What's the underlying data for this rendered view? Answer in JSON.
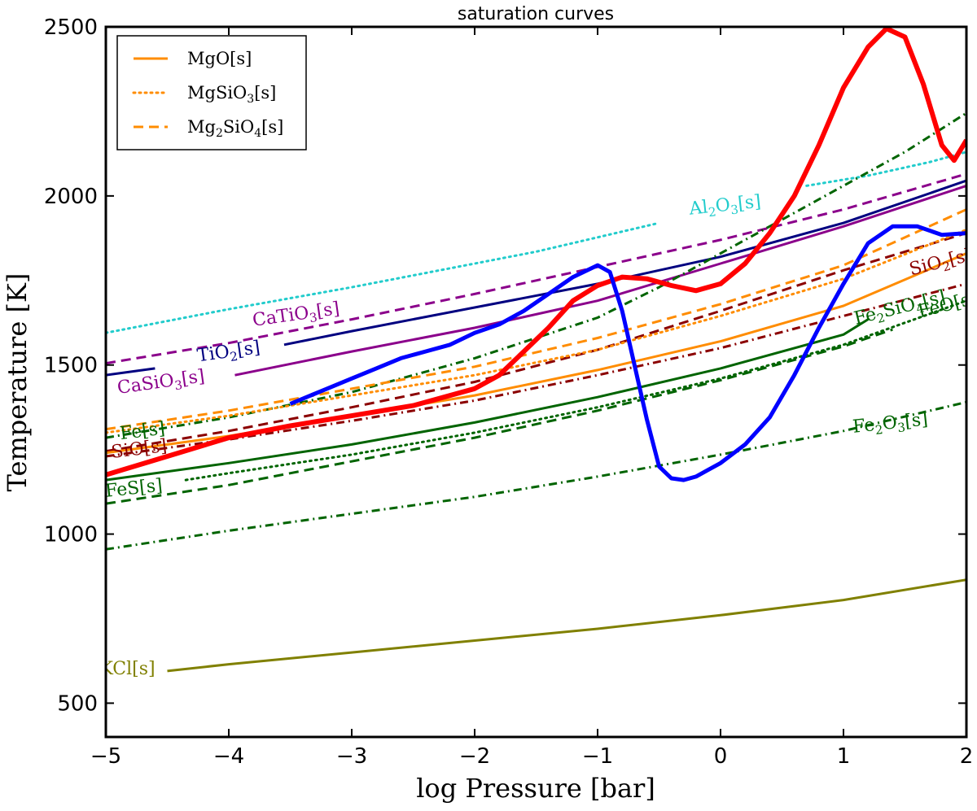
{
  "chart_data": {
    "type": "line",
    "title": "saturation curves",
    "xlabel": "log Pressure [bar]",
    "ylabel": "Temperature [K]",
    "xlim": [
      -5,
      2
    ],
    "ylim": [
      400,
      2500
    ],
    "x_ticks": [
      {
        "value": -5,
        "label": "−5"
      },
      {
        "value": -4,
        "label": "−4"
      },
      {
        "value": -3,
        "label": "−3"
      },
      {
        "value": -2,
        "label": "−2"
      },
      {
        "value": -1,
        "label": "−1"
      },
      {
        "value": 0,
        "label": "0"
      },
      {
        "value": 1,
        "label": "1"
      },
      {
        "value": 2,
        "label": "2"
      }
    ],
    "y_ticks": [
      {
        "value": 500,
        "label": "500"
      },
      {
        "value": 1000,
        "label": "1000"
      },
      {
        "value": 1500,
        "label": "1500"
      },
      {
        "value": 2000,
        "label": "2000"
      },
      {
        "value": 2500,
        "label": "2500"
      }
    ],
    "legend": {
      "location": "upper-left",
      "entries": [
        {
          "base": "MgO",
          "sub": "",
          "mid": "",
          "sub2": "",
          "suffix": "[s]",
          "color": "#ff8c00",
          "dash": "solid"
        },
        {
          "base": "MgSiO",
          "sub": "3",
          "mid": "",
          "sub2": "",
          "suffix": "[s]",
          "color": "#ff8c00",
          "dash": "dotted"
        },
        {
          "base": "Mg",
          "sub": "2",
          "mid": "SiO",
          "sub2": "4",
          "suffix": "[s]",
          "color": "#ff8c00",
          "dash": "dashed"
        }
      ]
    },
    "series": [
      {
        "name": "Al2O3[s]",
        "color": "#22cccc",
        "dash": "dotted",
        "width": 3,
        "x": [
          -5,
          -4,
          -3,
          -2,
          -1.5,
          -0.5
        ],
        "y": [
          1595,
          1665,
          1730,
          1800,
          1835,
          1920
        ]
      },
      {
        "name": "Al2O3[s] upper",
        "color": "#22cccc",
        "dash": "dotted",
        "width": 3,
        "x": [
          0.7,
          1.2,
          1.7,
          2
        ],
        "y": [
          2030,
          2060,
          2100,
          2130
        ]
      },
      {
        "name": "CaTiO3[s]",
        "color": "#8b008b",
        "dash": "dashed",
        "width": 3,
        "x": [
          -5,
          -4,
          -3,
          -2,
          -1,
          0,
          1,
          2
        ],
        "y": [
          1505,
          1565,
          1635,
          1710,
          1790,
          1870,
          1960,
          2065
        ]
      },
      {
        "name": "TiO2[s] (lower)",
        "color": "#000080",
        "dash": "solid",
        "width": 3,
        "x": [
          -5,
          -4.6
        ],
        "y": [
          1470,
          1490
        ]
      },
      {
        "name": "TiO2[s]",
        "color": "#000080",
        "dash": "solid",
        "width": 3,
        "x": [
          -3.55,
          -3,
          -2,
          -1,
          0,
          1,
          2
        ],
        "y": [
          1560,
          1600,
          1670,
          1740,
          1820,
          1920,
          2045
        ]
      },
      {
        "name": "CaSiO3[s]",
        "color": "#8b008b",
        "dash": "solid",
        "width": 3,
        "x": [
          -3.95,
          -3,
          -2,
          -1,
          0,
          1,
          2
        ],
        "y": [
          1470,
          1540,
          1610,
          1690,
          1800,
          1910,
          2030
        ]
      },
      {
        "name": "Fe2SiO4-like",
        "color": "#006400",
        "dash": "dashdot",
        "width": 3,
        "x": [
          -5,
          -4,
          -3,
          -2,
          -1,
          -0.5,
          0,
          0.5,
          1,
          1.5,
          2
        ],
        "y": [
          1285,
          1345,
          1420,
          1520,
          1640,
          1730,
          1830,
          1930,
          2030,
          2130,
          2245
        ]
      },
      {
        "name": "SiO2[s]",
        "color": "#8b0000",
        "dash": "dashed",
        "width": 3,
        "x": [
          -5,
          -4,
          -3,
          -2,
          -1,
          0,
          1,
          2
        ],
        "y": [
          1245,
          1305,
          1375,
          1450,
          1545,
          1660,
          1780,
          1890
        ]
      },
      {
        "name": "SiO[s]",
        "color": "#8b0000",
        "dash": "dashdot",
        "width": 3,
        "x": [
          -5,
          -4,
          -3,
          -2,
          -1,
          0,
          1,
          2
        ],
        "y": [
          1230,
          1280,
          1335,
          1395,
          1470,
          1550,
          1645,
          1740
        ]
      },
      {
        "name": "Mg2SiO4[s]",
        "color": "#ff8c00",
        "dash": "dashed",
        "width": 3,
        "x": [
          -5,
          -4,
          -3,
          -2,
          -1,
          0,
          1,
          2
        ],
        "y": [
          1310,
          1365,
          1430,
          1495,
          1580,
          1680,
          1795,
          1960
        ]
      },
      {
        "name": "MgSiO3[s]",
        "color": "#ff8c00",
        "dash": "dotted",
        "width": 3,
        "x": [
          -5,
          -4,
          -3,
          -2,
          -1,
          0,
          1,
          2
        ],
        "y": [
          1300,
          1350,
          1410,
          1470,
          1545,
          1645,
          1755,
          1900
        ]
      },
      {
        "name": "MgO[s]",
        "color": "#ff8c00",
        "dash": "solid",
        "width": 3,
        "x": [
          -5,
          -4,
          -3,
          -2,
          -1,
          0,
          1,
          2
        ],
        "y": [
          1240,
          1290,
          1350,
          1410,
          1485,
          1570,
          1675,
          1830
        ]
      },
      {
        "name": "Fe[s]",
        "color": "#006400",
        "dash": "solid",
        "width": 3,
        "x": [
          -5,
          -4,
          -3,
          -2,
          -1,
          0,
          1,
          1.2
        ],
        "y": [
          1160,
          1210,
          1265,
          1330,
          1405,
          1490,
          1590,
          1635
        ]
      },
      {
        "name": "FeO[s]",
        "color": "#006400",
        "dash": "dotted",
        "width": 3,
        "x": [
          -4.35,
          -4,
          -3,
          -2,
          -1,
          0,
          1,
          2
        ],
        "y": [
          1160,
          1180,
          1235,
          1300,
          1375,
          1460,
          1560,
          1690
        ]
      },
      {
        "name": "FeS[s]",
        "color": "#006400",
        "dash": "dashed",
        "width": 3,
        "x": [
          -5,
          -4,
          -3,
          -2,
          -1,
          0,
          1,
          1.4
        ],
        "y": [
          1090,
          1145,
          1215,
          1285,
          1365,
          1455,
          1555,
          1605
        ]
      },
      {
        "name": "Fe2O3[s]",
        "color": "#006400",
        "dash": "dashdot",
        "width": 3,
        "x": [
          -5,
          -4,
          -3,
          -2,
          -1,
          0,
          1,
          2
        ],
        "y": [
          955,
          1010,
          1060,
          1110,
          1170,
          1235,
          1305,
          1390
        ]
      },
      {
        "name": "KCl[s]",
        "color": "#808000",
        "dash": "solid",
        "width": 3,
        "x": [
          -4.5,
          -4,
          -3,
          -2,
          -1,
          0,
          1,
          2
        ],
        "y": [
          595,
          615,
          650,
          685,
          720,
          760,
          805,
          865
        ]
      },
      {
        "name": "T-P profile (red)",
        "color": "#ff0000",
        "dash": "solid",
        "width": 6,
        "x": [
          -5,
          -4.5,
          -4,
          -3.5,
          -3,
          -2.5,
          -2,
          -1.8,
          -1.6,
          -1.4,
          -1.2,
          -1,
          -0.8,
          -0.6,
          -0.4,
          -0.2,
          0,
          0.2,
          0.4,
          0.6,
          0.8,
          1,
          1.2,
          1.35,
          1.5,
          1.65,
          1.8,
          1.9,
          2
        ],
        "y": [
          1175,
          1230,
          1285,
          1320,
          1350,
          1380,
          1430,
          1470,
          1540,
          1610,
          1690,
          1735,
          1760,
          1755,
          1735,
          1720,
          1740,
          1800,
          1890,
          2000,
          2150,
          2320,
          2440,
          2495,
          2470,
          2330,
          2150,
          2105,
          2165
        ]
      },
      {
        "name": "T-P profile (blue)",
        "color": "#0000ff",
        "dash": "solid",
        "width": 5,
        "x": [
          -3.5,
          -3.2,
          -3,
          -2.8,
          -2.6,
          -2.4,
          -2.2,
          -2,
          -1.8,
          -1.6,
          -1.4,
          -1.2,
          -1,
          -0.9,
          -0.8,
          -0.7,
          -0.6,
          -0.5,
          -0.4,
          -0.3,
          -0.2,
          -0.1,
          0,
          0.2,
          0.4,
          0.6,
          0.8,
          1,
          1.2,
          1.4,
          1.6,
          1.8,
          2
        ],
        "y": [
          1385,
          1430,
          1460,
          1490,
          1520,
          1540,
          1560,
          1595,
          1620,
          1660,
          1710,
          1760,
          1795,
          1775,
          1660,
          1500,
          1340,
          1200,
          1165,
          1160,
          1170,
          1190,
          1210,
          1265,
          1345,
          1470,
          1610,
          1740,
          1860,
          1910,
          1910,
          1885,
          1890
        ]
      }
    ],
    "annotations": [
      {
        "id": "al2o3",
        "parts": [
          {
            "t": "Al"
          },
          {
            "t": "2",
            "sub": true
          },
          {
            "t": "O"
          },
          {
            "t": "3",
            "sub": true
          },
          {
            "t": "[s]"
          }
        ],
        "x": -0.25,
        "y": 1945,
        "color": "#22cccc",
        "rotate": -6
      },
      {
        "id": "catio3",
        "parts": [
          {
            "t": "CaTiO"
          },
          {
            "t": "3",
            "sub": true
          },
          {
            "t": "[s]"
          }
        ],
        "x": -3.8,
        "y": 1615,
        "color": "#8b008b",
        "rotate": -8
      },
      {
        "id": "tio2",
        "parts": [
          {
            "t": "TiO"
          },
          {
            "t": "2",
            "sub": true
          },
          {
            "t": "[s]"
          }
        ],
        "x": -4.25,
        "y": 1510,
        "color": "#000080",
        "rotate": -8
      },
      {
        "id": "casio3",
        "parts": [
          {
            "t": "CaSiO"
          },
          {
            "t": "3",
            "sub": true
          },
          {
            "t": "[s]"
          }
        ],
        "x": -4.9,
        "y": 1415,
        "color": "#8b008b",
        "rotate": -8
      },
      {
        "id": "fe",
        "parts": [
          {
            "t": "Fe[s]"
          }
        ],
        "x": -4.88,
        "y": 1280,
        "color": "#006400",
        "rotate": -7
      },
      {
        "id": "sio",
        "parts": [
          {
            "t": "SiO[s]"
          }
        ],
        "x": -4.95,
        "y": 1225,
        "color": "#8b0000",
        "rotate": -7
      },
      {
        "id": "fes",
        "parts": [
          {
            "t": "FeS[s]"
          }
        ],
        "x": -5,
        "y": 1110,
        "color": "#006400",
        "rotate": -6
      },
      {
        "id": "kcl",
        "parts": [
          {
            "t": "KCl[s]"
          }
        ],
        "x": -5.05,
        "y": 585,
        "color": "#808000",
        "rotate": 0
      },
      {
        "id": "fe2o3",
        "parts": [
          {
            "t": "Fe"
          },
          {
            "t": "2",
            "sub": true
          },
          {
            "t": "O"
          },
          {
            "t": "3",
            "sub": true
          },
          {
            "t": "[s]"
          }
        ],
        "x": 1.08,
        "y": 1300,
        "color": "#006400",
        "rotate": -6
      },
      {
        "id": "sio2",
        "parts": [
          {
            "t": "SiO"
          },
          {
            "t": "2",
            "sub": true
          },
          {
            "t": "[s]"
          }
        ],
        "x": 1.55,
        "y": 1765,
        "color": "#8b0000",
        "rotate": -14
      },
      {
        "id": "fe2sio4",
        "parts": [
          {
            "t": "Fe"
          },
          {
            "t": "2",
            "sub": true
          },
          {
            "t": "SiO"
          },
          {
            "t": "4",
            "sub": true
          },
          {
            "t": "[s]"
          }
        ],
        "x": 1.1,
        "y": 1620,
        "color": "#006400",
        "rotate": -14
      },
      {
        "id": "feo",
        "parts": [
          {
            "t": "FeO[s]"
          }
        ],
        "x": 1.62,
        "y": 1640,
        "color": "#006400",
        "rotate": -14
      }
    ],
    "grid": false
  }
}
